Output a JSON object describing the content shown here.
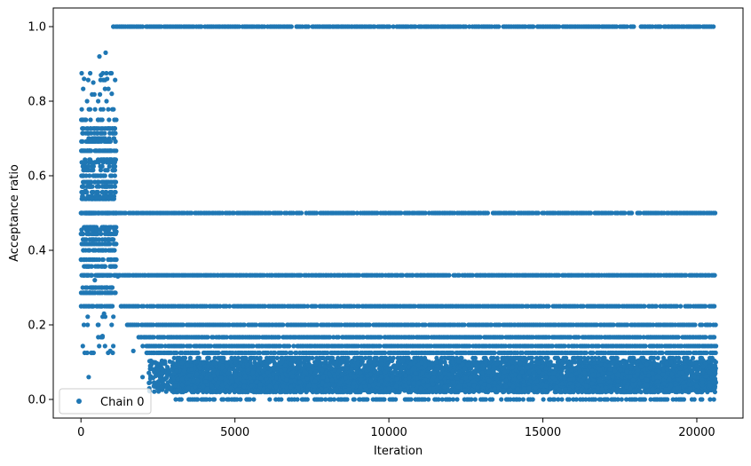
{
  "chart_data": {
    "type": "scatter",
    "xlabel": "Iteration",
    "ylabel": "Acceptance ratio",
    "xlim": [
      -900,
      21500
    ],
    "ylim": [
      -0.05,
      1.05
    ],
    "xticks": [
      0,
      5000,
      10000,
      15000,
      20000
    ],
    "xtick_labels": [
      "0",
      "5000",
      "10000",
      "15000",
      "20000"
    ],
    "yticks": [
      0.0,
      0.2,
      0.4,
      0.6,
      0.8,
      1.0
    ],
    "ytick_labels": [
      "0.0",
      "0.2",
      "0.4",
      "0.6",
      "0.8",
      "1.0"
    ],
    "grid": false,
    "legend": {
      "placement": "lower-left",
      "entries": [
        "Chain 0"
      ]
    },
    "series": [
      {
        "name": "Chain 0",
        "color": "#1f77b4",
        "marker": "circle",
        "x_range": [
          0,
          20600
        ],
        "n_points": 20600,
        "warmup_segment": {
          "x_range": [
            0,
            1150
          ],
          "y_range": [
            0.06,
            0.93
          ]
        },
        "levels": [
          {
            "y": 1.0,
            "x_range": [
              1050,
              20600
            ]
          },
          {
            "y": 0.5,
            "x_range": [
              0,
              20600
            ]
          },
          {
            "y": 0.333,
            "x_range": [
              1150,
              20600
            ]
          },
          {
            "y": 0.25,
            "x_range": [
              1300,
              20600
            ]
          },
          {
            "y": 0.2,
            "x_range": [
              1500,
              20600
            ]
          },
          {
            "y": 0.167,
            "x_range": [
              1800,
              20600
            ]
          },
          {
            "y": 0.143,
            "x_range": [
              2000,
              20600
            ]
          },
          {
            "y": 0.125,
            "x_range": [
              2100,
              20600
            ]
          }
        ],
        "dense_band": {
          "x_range": [
            2200,
            20600
          ],
          "y_range": [
            0.0,
            0.11
          ]
        },
        "sample_points": [
          [
            0,
            0.5
          ],
          [
            100,
            0.86
          ],
          [
            150,
            0.56
          ],
          [
            200,
            0.125
          ],
          [
            250,
            0.06
          ],
          [
            300,
            0.875
          ],
          [
            400,
            0.85
          ],
          [
            450,
            0.32
          ],
          [
            500,
            0.3
          ],
          [
            550,
            0.2
          ],
          [
            600,
            0.92
          ],
          [
            650,
            0.87
          ],
          [
            700,
            0.17
          ],
          [
            750,
            0.23
          ],
          [
            800,
            0.93
          ],
          [
            850,
            0.86
          ],
          [
            900,
            0.5
          ],
          [
            950,
            0.13
          ],
          [
            1000,
            0.82
          ],
          [
            1050,
            1.0
          ],
          [
            1100,
            0.6
          ],
          [
            1150,
            0.45
          ],
          [
            1200,
            0.33
          ],
          [
            1300,
            0.25
          ],
          [
            1500,
            0.2
          ],
          [
            1700,
            0.13
          ],
          [
            2000,
            0.06
          ],
          [
            2500,
            0.04
          ],
          [
            3000,
            0.02
          ],
          [
            3500,
            0.0
          ],
          [
            5000,
            0.0
          ],
          [
            10000,
            0.03
          ],
          [
            15000,
            0.07
          ],
          [
            20000,
            0.09
          ],
          [
            20500,
            0.06
          ],
          [
            20600,
            0.07
          ]
        ]
      }
    ]
  }
}
